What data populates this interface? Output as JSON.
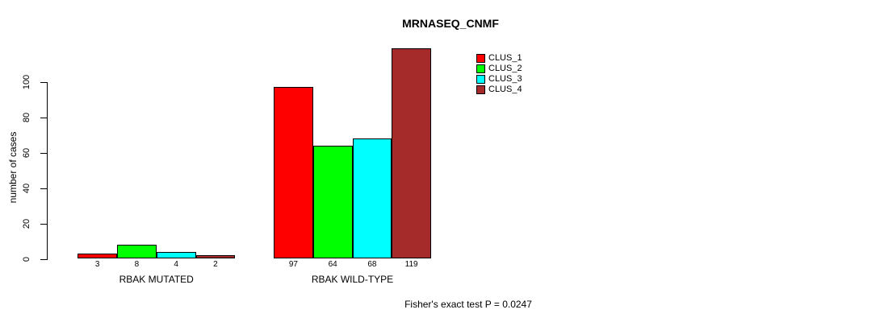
{
  "chart_data": {
    "type": "bar",
    "title": "MRNASEQ_CNMF",
    "xlabel": "",
    "ylabel": "number of cases",
    "ylim": [
      0,
      100
    ],
    "yticks": [
      0,
      20,
      40,
      60,
      80,
      100
    ],
    "grid": false,
    "legend_position": "top-right",
    "bar_border_color": "#000000",
    "bar_value_labels_shown": true,
    "categories": [
      "RBAK MUTATED",
      "RBAK WILD-TYPE"
    ],
    "series": [
      {
        "name": "CLUS_1",
        "color": "#FF0000",
        "values": [
          3,
          97
        ]
      },
      {
        "name": "CLUS_2",
        "color": "#00FF00",
        "values": [
          8,
          64
        ]
      },
      {
        "name": "CLUS_3",
        "color": "#00FFFF",
        "values": [
          4,
          68
        ]
      },
      {
        "name": "CLUS_4",
        "color": "#A52A2A",
        "values": [
          2,
          119
        ]
      }
    ],
    "annotation": "Fisher's exact test P = 0.0247"
  }
}
